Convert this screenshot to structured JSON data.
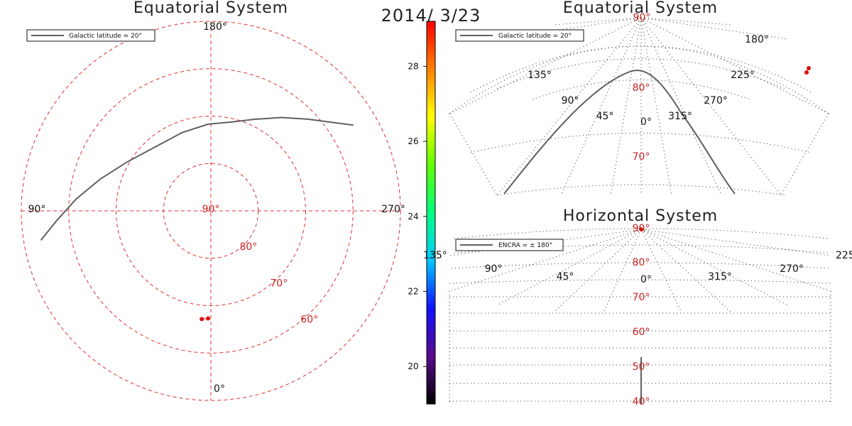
{
  "date_label": "2014/ 3/23",
  "colors": {
    "polar_grid": "#e03030",
    "lat_label": "#cc2222",
    "grid_dot": "#333333",
    "curve": "#606060",
    "marker": "#dd1111",
    "text": "#111111"
  },
  "chart_data": [
    {
      "id": "polar",
      "type": "scatter",
      "title": "Equatorial System",
      "projection": "polar",
      "legend": {
        "label": "Galactic latitude = 20°",
        "placement": "top-left"
      },
      "rings_dec": [
        80,
        70,
        60
      ],
      "dec_range": [
        50,
        90
      ],
      "ring_labels": [
        "80°",
        "70°",
        "60°"
      ],
      "center_label": "90°",
      "ra_labels": [
        {
          "text": "180°",
          "ra": 180
        },
        {
          "text": "90°",
          "ra": 90
        },
        {
          "text": "270°",
          "ra": 270
        },
        {
          "text": "0°",
          "ra": 0
        }
      ],
      "curve": {
        "name": "Galactic latitude = 20°",
        "points": [
          {
            "ra": 99.8,
            "dec": 53.6
          },
          {
            "ra": 93.6,
            "dec": 57.4
          },
          {
            "ra": 84.9,
            "dec": 61.5
          },
          {
            "ra": 74.0,
            "dec": 65.7
          },
          {
            "ra": 59.4,
            "dec": 69.6
          },
          {
            "ra": 39.7,
            "dec": 72.2
          },
          {
            "ra": 20.1,
            "dec": 72.4
          },
          {
            "ra": 1.9,
            "dec": 71.7
          },
          {
            "ra": 346.6,
            "dec": 70.7
          },
          {
            "ra": 334.6,
            "dec": 68.6
          },
          {
            "ra": 322.9,
            "dec": 65.3
          },
          {
            "ra": 313.3,
            "dec": 61.8
          },
          {
            "ra": 305.9,
            "dec": 58.2
          },
          {
            "ra": 301.0,
            "dec": 54.9
          }
        ]
      },
      "points": [
        {
          "ra": 178.5,
          "dec": 67.3
        },
        {
          "ra": 175.2,
          "dec": 67.1
        }
      ]
    },
    {
      "id": "eq_dome",
      "type": "scatter",
      "title": "Equatorial System",
      "projection": "dome",
      "legend": {
        "label": "Galactic latitude = 20°",
        "placement": "top-left"
      },
      "center_label": "90°",
      "lat_labels": [
        "80°",
        "70°"
      ],
      "ra_labels": [
        "180°",
        "135°",
        "225°",
        "90°",
        "270°",
        "45°",
        "315°",
        "0°"
      ],
      "curve_name": "Galactic latitude = 20°",
      "points_count": 2
    },
    {
      "id": "horizontal",
      "type": "scatter",
      "title": "Horizontal System",
      "projection": "dome",
      "legend": {
        "label": "ENCRA = ± 180°",
        "placement": "top-left"
      },
      "center_label": "90°",
      "lat_labels": [
        "80°",
        "70°",
        "60°",
        "50°",
        "40°"
      ],
      "az_labels": [
        "90°",
        "45°",
        "0°",
        "315°",
        "270°",
        "225",
        "135°"
      ],
      "curve_name": "ENCRA = ± 180°",
      "points_count": 1
    }
  ],
  "colorbar": {
    "ticks": [
      "28",
      "26",
      "24",
      "22",
      "20"
    ],
    "tick_values": [
      28,
      26,
      24,
      22,
      20
    ],
    "range": [
      19,
      29.2
    ],
    "colors": [
      "#000000",
      "#5a0a8c",
      "#1010ff",
      "#00c8ff",
      "#00ff80",
      "#60ff00",
      "#ffff00",
      "#ff8000",
      "#ff0000"
    ]
  }
}
